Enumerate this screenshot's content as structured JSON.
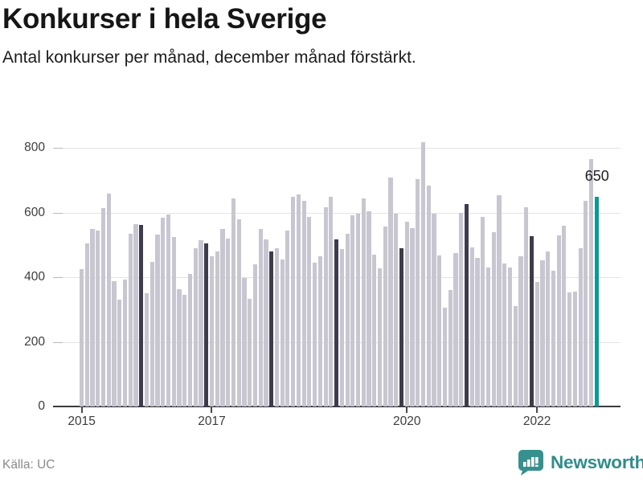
{
  "header": {
    "title": "Konkurser i hela Sverige",
    "subtitle": "Antal konkurser per månad, december månad förstärkt."
  },
  "footer": {
    "source": "Källa: UC",
    "brand": "Newsworthy"
  },
  "annotation": {
    "last_value_label": "650"
  },
  "colors": {
    "bar": "#c8c6d0",
    "bar_december": "#3e3c4b",
    "bar_latest": "#0b9a92",
    "grid": "#e4e4e4",
    "axis": "#3a3a3f",
    "brand_teal": "#2f8d8a"
  },
  "chart_data": {
    "type": "bar",
    "title": "Konkurser i hela Sverige",
    "subtitle": "Antal konkurser per månad, december månad förstärkt.",
    "xlabel": "",
    "ylabel": "",
    "ylim": [
      0,
      830
    ],
    "grid": true,
    "legend": "none",
    "y_ticks": [
      0,
      200,
      400,
      600,
      800
    ],
    "x_tick_labels": [
      "2015",
      "2017",
      "2020",
      "2022"
    ],
    "x_tick_years": [
      2015,
      2017,
      2020,
      2022
    ],
    "december_highlighted": true,
    "latest_bar_highlighted": true,
    "latest_bar_value": 650,
    "years": [
      {
        "year": 2015,
        "monthly": [
          425,
          505,
          550,
          545,
          615,
          660,
          388,
          330,
          392,
          535,
          565,
          562
        ]
      },
      {
        "year": 2016,
        "monthly": [
          350,
          448,
          532,
          585,
          595,
          525,
          362,
          345,
          410,
          490,
          515,
          505
        ]
      },
      {
        "year": 2017,
        "monthly": [
          465,
          480,
          550,
          520,
          645,
          580,
          398,
          334,
          440,
          549,
          517,
          480
        ]
      },
      {
        "year": 2018,
        "monthly": [
          490,
          455,
          545,
          650,
          656,
          638,
          587,
          446,
          466,
          616,
          650,
          518
        ]
      },
      {
        "year": 2019,
        "monthly": [
          488,
          535,
          592,
          598,
          645,
          605,
          471,
          428,
          556,
          710,
          596,
          491
        ]
      },
      {
        "year": 2020,
        "monthly": [
          571,
          552,
          705,
          818,
          684,
          596,
          468,
          307,
          360,
          474,
          600,
          628
        ]
      },
      {
        "year": 2021,
        "monthly": [
          493,
          461,
          586,
          430,
          541,
          655,
          443,
          430,
          310,
          466,
          617,
          527
        ]
      },
      {
        "year": 2022,
        "monthly": [
          386,
          452,
          480,
          420,
          530,
          560,
          352,
          355,
          489,
          638,
          765,
          650
        ]
      }
    ]
  }
}
